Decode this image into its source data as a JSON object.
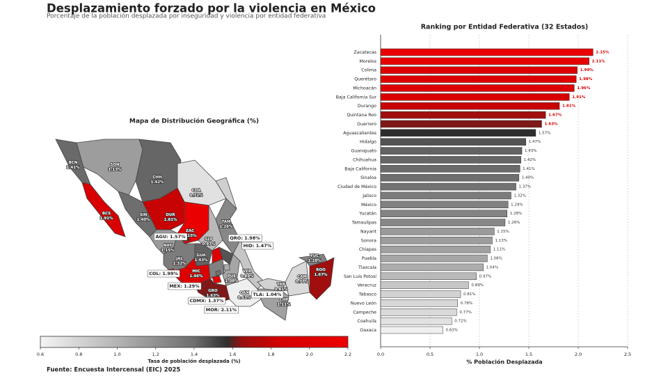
{
  "title": "Desplazamiento forzado por la violencia en México",
  "subtitle": "Porcentaje de la población desplazada por inseguridad y violencia por entidad federativa",
  "source": "Fuente: Encuesta Intercensal (EIC) 2025",
  "chart_data": [
    {
      "type": "choropleth",
      "title": "Mapa de Distribución Geográfica (%)",
      "colorscale": [
        [
          0.6,
          "#f4f4f4"
        ],
        [
          1.0,
          "#b4b4b4"
        ],
        [
          1.4,
          "#6e6e6e"
        ],
        [
          1.57,
          "#2e2e2e"
        ],
        [
          1.65,
          "#9a1010"
        ],
        [
          1.85,
          "#d40000"
        ],
        [
          2.2,
          "#ee0000"
        ]
      ],
      "regions": [
        {
          "code": "BCN",
          "value": 1.41,
          "value_label": "1.41%"
        },
        {
          "code": "SON",
          "value": 1.13,
          "value_label": "1.13%"
        },
        {
          "code": "CHH",
          "value": 1.42,
          "value_label": "1.42%"
        },
        {
          "code": "COA",
          "value": 0.72,
          "value_label": "0.72%"
        },
        {
          "code": "BCS",
          "value": 1.91,
          "value_label": "1.91%"
        },
        {
          "code": "SIN",
          "value": 1.4,
          "value_label": "1.40%"
        },
        {
          "code": "DUR",
          "value": 1.81,
          "value_label": "1.81%"
        },
        {
          "code": "ZAC",
          "value": 2.15,
          "value_label": "2.15%"
        },
        {
          "code": "TAM",
          "value": 1.26,
          "value_label": "1.26%"
        },
        {
          "code": "SLP",
          "value": 0.97,
          "value_label": "0.97%"
        },
        {
          "code": "NAY",
          "value": 1.15,
          "value_label": "1.15%"
        },
        {
          "code": "JAL",
          "value": 1.32,
          "value_label": "1.32%"
        },
        {
          "code": "GUA",
          "value": 1.43,
          "value_label": "1.43%"
        },
        {
          "code": "MIC",
          "value": 1.96,
          "value_label": "1.96%"
        },
        {
          "code": "PUE",
          "value": 1.08,
          "value_label": "1.08%"
        },
        {
          "code": "VER",
          "value": 0.89,
          "value_label": "0.89%"
        },
        {
          "code": "GRO",
          "value": 1.63,
          "value_label": "1.63%"
        },
        {
          "code": "OAX",
          "value": 0.63,
          "value_label": "0.63%"
        },
        {
          "code": "TAB",
          "value": 0.81,
          "value_label": "0.81%"
        },
        {
          "code": "CAM",
          "value": 0.77,
          "value_label": "0.77%"
        },
        {
          "code": "CHP",
          "value": 1.11,
          "value_label": "1.11%"
        },
        {
          "code": "YUC",
          "value": 1.28,
          "value_label": "1.28%"
        },
        {
          "code": "ROO",
          "value": 1.67,
          "value_label": "1.67%"
        }
      ],
      "callouts": [
        {
          "label": "AGU: 1.57%",
          "value": 1.57
        },
        {
          "label": "QRO: 1.98%",
          "value": 1.98
        },
        {
          "label": "HID: 1.47%",
          "value": 1.47
        },
        {
          "label": "COL: 1.99%",
          "value": 1.99
        },
        {
          "label": "MEX: 1.29%",
          "value": 1.29
        },
        {
          "label": "CDMX: 1.37%",
          "value": 1.37
        },
        {
          "label": "TLA: 1.04%",
          "value": 1.04
        },
        {
          "label": "MOR: 2.11%",
          "value": 2.11
        }
      ],
      "colorbar": {
        "label": "Tasa de población desplazada (%)",
        "lim": [
          0.6,
          2.2
        ],
        "ticks": [
          0.6,
          0.8,
          {
            "value": 1.0,
            "label": "1.0"
          },
          1.2,
          1.4,
          1.6,
          1.8,
          {
            "value": 2.0,
            "label": "2.0"
          },
          2.2
        ]
      }
    },
    {
      "type": "barh",
      "title": "Ranking por Entidad Federativa (32 Estados)",
      "xlabel": "% Población Desplazada",
      "categories": [
        "Zacatecas",
        "Morelos",
        "Colima",
        "Querétaro",
        "Michoacán",
        "Baja California Sur",
        "Durango",
        "Quintana Roo",
        "Guerrero",
        "Aguascalientes",
        "Hidalgo",
        "Guanajuato",
        "Chihuahua",
        "Baja California",
        "Sinaloa",
        "Ciudad de México",
        "Jalisco",
        "México",
        "Yucatán",
        "Tamaulipas",
        "Nayarit",
        "Sonora",
        "Chiapas",
        "Puebla",
        "Tlaxcala",
        "San Luis Potosí",
        "Veracruz",
        "Tabasco",
        "Nuevo León",
        "Campeche",
        "Coahuila",
        "Oaxaca"
      ],
      "values": [
        2.15,
        2.11,
        1.99,
        1.98,
        1.96,
        1.91,
        1.81,
        1.67,
        1.63,
        1.57,
        1.47,
        1.43,
        1.42,
        1.41,
        1.4,
        1.37,
        1.32,
        1.29,
        1.28,
        1.26,
        1.15,
        1.13,
        1.11,
        1.08,
        1.04,
        0.97,
        0.89,
        0.81,
        0.78,
        0.77,
        0.72,
        0.63
      ],
      "value_labels": [
        "2.15%",
        "2.11%",
        "1.99%",
        "1.98%",
        "1.96%",
        "1.91%",
        "1.81%",
        "1.67%",
        "1.63%",
        "1.57%",
        "1.47%",
        "1.43%",
        "1.42%",
        "1.41%",
        "1.40%",
        "1.37%",
        "1.32%",
        "1.29%",
        "1.28%",
        "1.26%",
        "1.15%",
        "1.13%",
        "1.11%",
        "1.08%",
        "1.04%",
        "0.97%",
        "0.89%",
        "0.81%",
        "0.78%",
        "0.77%",
        "0.72%",
        "0.63%"
      ],
      "xlim": [
        0,
        2.5
      ],
      "xticks": [
        {
          "value": 0,
          "label": "0.0"
        },
        0.5,
        {
          "value": 1.0,
          "label": "1.0"
        },
        1.5,
        {
          "value": 2.0,
          "label": "2.0"
        },
        2.5
      ],
      "grid": true
    }
  ]
}
